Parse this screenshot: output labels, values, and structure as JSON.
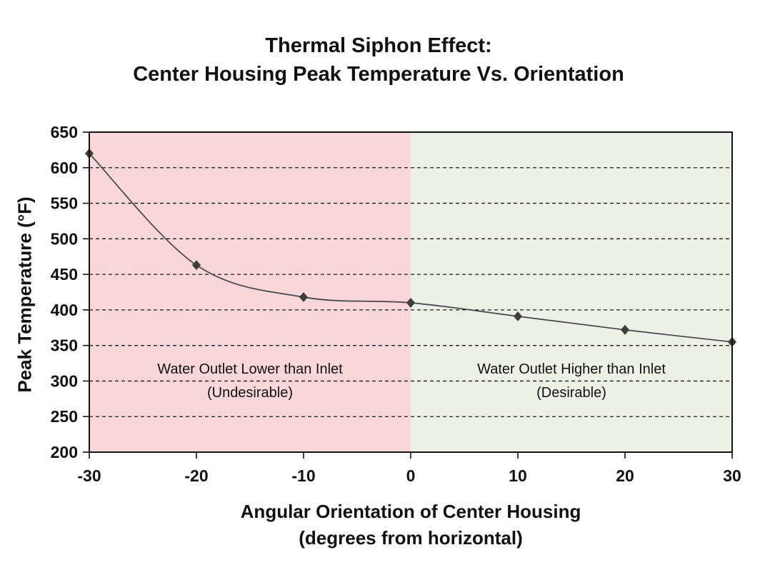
{
  "title": {
    "line1": "Thermal Siphon Effect:",
    "line2": "Center Housing Peak Temperature Vs. Orientation"
  },
  "chart_data": {
    "type": "line",
    "x": [
      -30,
      -20,
      -10,
      0,
      10,
      20,
      30
    ],
    "series": [
      {
        "name": "Center Housing Peak Temperature",
        "values": [
          620,
          463,
          418,
          410,
          391,
          372,
          355
        ]
      }
    ],
    "xlabel_line1": "Angular Orientation of Center Housing",
    "xlabel_line2": "(degrees from horizontal)",
    "ylabel": "Peak Temperature (°F)",
    "xlim": [
      -30,
      30
    ],
    "ylim": [
      200,
      650
    ],
    "x_ticks": [
      -30,
      -20,
      -10,
      0,
      10,
      20,
      30
    ],
    "y_ticks": [
      200,
      250,
      300,
      350,
      400,
      450,
      500,
      550,
      600,
      650
    ],
    "grid": "horizontal-dashed",
    "line_smoothed": true,
    "marker": "diamond",
    "colors": {
      "line": "#454545",
      "marker": "#3d3d3d",
      "grid": "#1a1a1a",
      "axis": "#111111",
      "region_undesirable": "#f8d6da",
      "region_desirable": "#ebf1e6",
      "text": "#111111",
      "background": "#ffffff"
    },
    "regions": [
      {
        "x_start": -30,
        "x_end": 0,
        "label_line1": "Water Outlet Lower than Inlet",
        "label_line2": "(Undesirable)",
        "color": "#f8d6da"
      },
      {
        "x_start": 0,
        "x_end": 30,
        "label_line1": "Water Outlet Higher than Inlet",
        "label_line2": "(Desirable)",
        "color": "#ebf1e6"
      }
    ]
  }
}
